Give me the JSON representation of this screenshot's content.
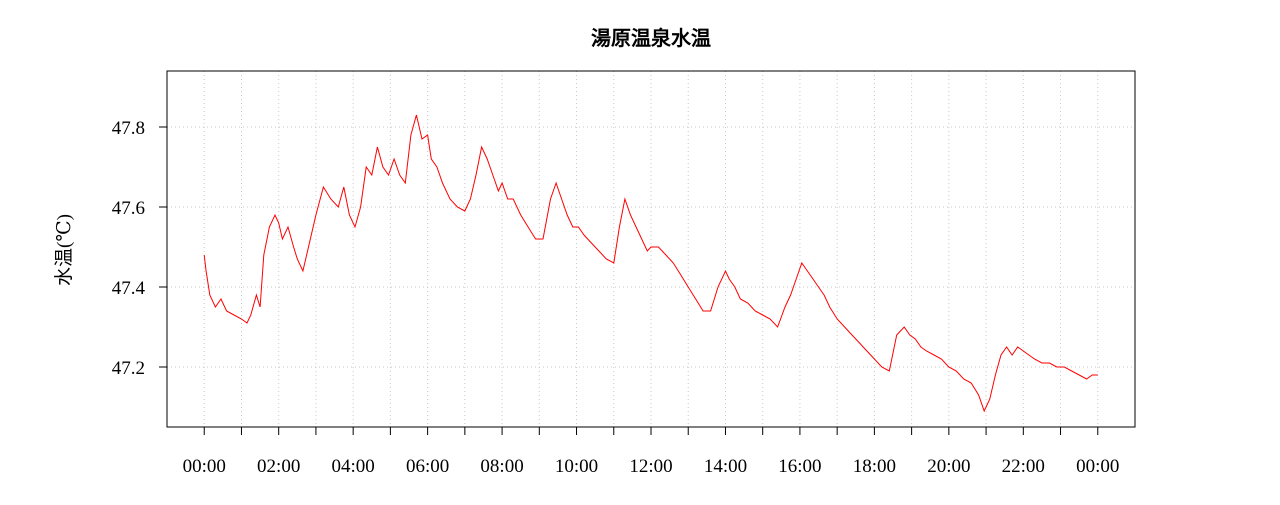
{
  "chart_data": {
    "type": "line",
    "title": "湯原温泉水温",
    "xlabel": "",
    "ylabel": "水温(℃)",
    "xlim": [
      -1.0,
      25.0
    ],
    "ylim": [
      47.05,
      47.94
    ],
    "x_tick_labels": [
      "00:00",
      "02:00",
      "04:00",
      "06:00",
      "08:00",
      "10:00",
      "12:00",
      "14:00",
      "16:00",
      "18:00",
      "20:00",
      "22:00",
      "00:00"
    ],
    "x_tick_hours": [
      0,
      2,
      4,
      6,
      8,
      10,
      12,
      14,
      16,
      18,
      20,
      22,
      24
    ],
    "y_ticks": [
      47.2,
      47.4,
      47.6,
      47.8
    ],
    "y_tick_labels": [
      "47.2",
      "47.4",
      "47.6",
      "47.8"
    ],
    "grid": true,
    "line_color": "#ff0000",
    "series": [
      {
        "x": [
          0.0,
          0.05,
          0.15,
          0.3,
          0.45,
          0.6,
          0.8,
          1.0,
          1.15,
          1.25,
          1.4,
          1.5,
          1.6,
          1.75,
          1.9,
          2.0,
          2.1,
          2.25,
          2.4,
          2.5,
          2.65,
          2.8,
          3.0,
          3.2,
          3.4,
          3.6,
          3.75,
          3.9,
          4.05,
          4.2,
          4.35,
          4.5,
          4.65,
          4.8,
          4.95,
          5.1,
          5.25,
          5.4,
          5.55,
          5.7,
          5.85,
          6.0,
          6.1,
          6.25,
          6.4,
          6.6,
          6.8,
          7.0,
          7.15,
          7.3,
          7.45,
          7.6,
          7.75,
          7.9,
          8.0,
          8.15,
          8.3,
          8.5,
          8.7,
          8.9,
          9.1,
          9.3,
          9.45,
          9.6,
          9.75,
          9.9,
          10.05,
          10.2,
          10.4,
          10.6,
          10.8,
          11.0,
          11.15,
          11.3,
          11.45,
          11.6,
          11.75,
          11.9,
          12.0,
          12.2,
          12.4,
          12.6,
          12.8,
          13.0,
          13.2,
          13.4,
          13.6,
          13.8,
          14.0,
          14.1,
          14.25,
          14.4,
          14.6,
          14.8,
          15.0,
          15.2,
          15.4,
          15.6,
          15.75,
          15.9,
          16.05,
          16.2,
          16.35,
          16.5,
          16.65,
          16.8,
          17.0,
          17.2,
          17.4,
          17.6,
          17.8,
          18.0,
          18.2,
          18.4,
          18.6,
          18.8,
          18.95,
          19.1,
          19.25,
          19.4,
          19.6,
          19.8,
          20.0,
          20.2,
          20.4,
          20.6,
          20.8,
          20.95,
          21.1,
          21.25,
          21.4,
          21.55,
          21.7,
          21.85,
          22.0,
          22.15,
          22.3,
          22.5,
          22.7,
          22.9,
          23.1,
          23.3,
          23.5,
          23.7,
          23.85,
          24.0
        ],
        "y": [
          47.48,
          47.44,
          47.38,
          47.35,
          47.37,
          47.34,
          47.33,
          47.32,
          47.31,
          47.33,
          47.38,
          47.35,
          47.48,
          47.55,
          47.58,
          47.56,
          47.52,
          47.55,
          47.5,
          47.47,
          47.44,
          47.5,
          47.58,
          47.65,
          47.62,
          47.6,
          47.65,
          47.58,
          47.55,
          47.6,
          47.7,
          47.68,
          47.75,
          47.7,
          47.68,
          47.72,
          47.68,
          47.66,
          47.78,
          47.83,
          47.77,
          47.78,
          47.72,
          47.7,
          47.66,
          47.62,
          47.6,
          47.59,
          47.62,
          47.68,
          47.75,
          47.72,
          47.68,
          47.64,
          47.66,
          47.62,
          47.62,
          47.58,
          47.55,
          47.52,
          47.52,
          47.62,
          47.66,
          47.62,
          47.58,
          47.55,
          47.55,
          47.53,
          47.51,
          47.49,
          47.47,
          47.46,
          47.55,
          47.62,
          47.58,
          47.55,
          47.52,
          47.49,
          47.5,
          47.5,
          47.48,
          47.46,
          47.43,
          47.4,
          47.37,
          47.34,
          47.34,
          47.4,
          47.44,
          47.42,
          47.4,
          47.37,
          47.36,
          47.34,
          47.33,
          47.32,
          47.3,
          47.35,
          47.38,
          47.42,
          47.46,
          47.44,
          47.42,
          47.4,
          47.38,
          47.35,
          47.32,
          47.3,
          47.28,
          47.26,
          47.24,
          47.22,
          47.2,
          47.19,
          47.28,
          47.3,
          47.28,
          47.27,
          47.25,
          47.24,
          47.23,
          47.22,
          47.2,
          47.19,
          47.17,
          47.16,
          47.13,
          47.09,
          47.12,
          47.18,
          47.23,
          47.25,
          47.23,
          47.25,
          47.24,
          47.23,
          47.22,
          47.21,
          47.21,
          47.2,
          47.2,
          47.19,
          47.18,
          47.17,
          47.18,
          47.18
        ]
      }
    ]
  }
}
